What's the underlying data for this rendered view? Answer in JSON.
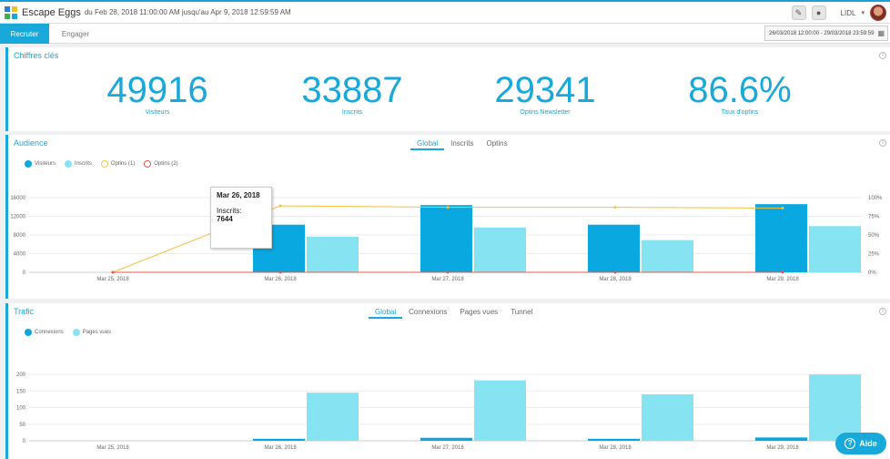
{
  "app": {
    "title": "Escape Eggs",
    "date_range": "du Feb 28, 2018 11:00:00 AM jusqu'au Apr 9, 2018 12:59:59 AM",
    "client": "LIDL"
  },
  "tabs": {
    "active": "Recruter",
    "inactive": "Engager"
  },
  "date_picker": {
    "value": "26/03/2018 12:00:00 - 29/03/2018 23:59:59"
  },
  "kpis": {
    "title": "Chiffres clés",
    "items": [
      {
        "value": "49916",
        "label": "Visiteurs"
      },
      {
        "value": "33887",
        "label": "Inscrits"
      },
      {
        "value": "29341",
        "label": "Optins Newsletter"
      },
      {
        "value": "86.6%",
        "label": "Taux d'optins"
      }
    ]
  },
  "audience": {
    "title": "Audience",
    "tabs": [
      "Global",
      "Inscrits",
      "Optins"
    ],
    "legend": [
      {
        "name": "Visiteurs",
        "color": "#0aa8e0",
        "style": "filled"
      },
      {
        "name": "Inscrits",
        "color": "#86e4f2",
        "style": "filled"
      },
      {
        "name": "Optins (1)",
        "color": "#f5c242",
        "style": "ring"
      },
      {
        "name": "Optins (2)",
        "color": "#e85a4a",
        "style": "ring"
      }
    ],
    "tooltip": {
      "date": "Mar 26, 2018",
      "series": "Inscrits:",
      "value": "7644"
    }
  },
  "trafic": {
    "title": "Trafic",
    "tabs": [
      "Global",
      "Connexions",
      "Pages vues",
      "Tunnel"
    ],
    "legend": [
      {
        "name": "Connexions",
        "color": "#0aa8e0"
      },
      {
        "name": "Pages vues",
        "color": "#86e4f2"
      }
    ]
  },
  "help": {
    "label": "Aide"
  },
  "chart_data": [
    {
      "type": "bar",
      "categories": [
        "Mar 25, 2018",
        "Mar 26, 2018",
        "Mar 27, 2018",
        "Mar 28, 2018",
        "Mar 29, 2018"
      ],
      "series": [
        {
          "name": "Visiteurs",
          "type": "bar",
          "axis": "left",
          "color": "#0aa8e0",
          "values": [
            0,
            10200,
            14400,
            10200,
            14600
          ]
        },
        {
          "name": "Inscrits",
          "type": "bar",
          "axis": "left",
          "color": "#86e4f2",
          "values": [
            0,
            7644,
            9600,
            6900,
            9900
          ]
        },
        {
          "name": "Optins (1)",
          "type": "line",
          "axis": "right",
          "color": "#f5c242",
          "values": [
            0,
            89,
            87,
            87,
            86
          ]
        },
        {
          "name": "Optins (2)",
          "type": "line",
          "axis": "right",
          "color": "#e85a4a",
          "values": [
            0,
            0,
            0,
            0,
            0
          ]
        }
      ],
      "y_ticks": [
        "0",
        "4000",
        "8000",
        "12000",
        "16000"
      ],
      "y2_ticks": [
        "0%",
        "25%",
        "50%",
        "75%",
        "100%"
      ],
      "ylim": [
        0,
        16000
      ],
      "y2lim": [
        0,
        100
      ],
      "grid": true
    },
    {
      "type": "bar",
      "categories": [
        "Mar 25, 2018",
        "Mar 26, 2018",
        "Mar 27, 2018",
        "Mar 28, 2018",
        "Mar 29, 2018"
      ],
      "series": [
        {
          "name": "Connexions",
          "color": "#0aa8e0",
          "values": [
            0,
            6,
            9,
            6,
            10
          ]
        },
        {
          "name": "Pages vues",
          "color": "#86e4f2",
          "values": [
            0,
            145,
            182,
            140,
            200
          ]
        }
      ],
      "y_ticks": [
        "0",
        "50",
        "100",
        "150",
        "200"
      ],
      "ylim": [
        0,
        225
      ],
      "grid": true
    }
  ]
}
